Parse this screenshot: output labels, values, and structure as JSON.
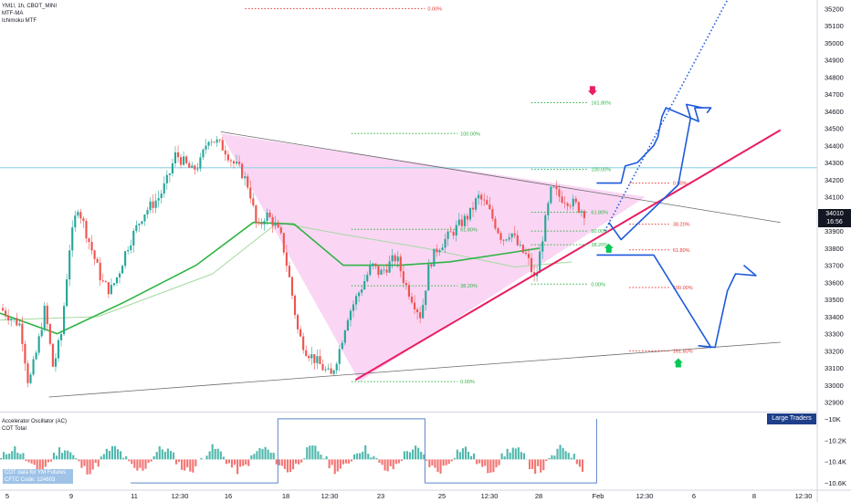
{
  "legend": {
    "symbol_line": "YM1!, 1h, CBOT_MINI",
    "indicator1": "MTF-MA",
    "indicator2": "Ichimoku MTF"
  },
  "osc_legend": {
    "line1": "Accelerator Oscillator (AC)",
    "line2": "COT Total"
  },
  "cot_box": {
    "line1": "COT data for YM Futures",
    "line2": "CFTC Code: 124603"
  },
  "large_traders_label": "Large Traders",
  "price_tag": {
    "price": "34010",
    "countdown": "16:56"
  },
  "chart_data": {
    "type": "candlestick",
    "symbol": "YM1!",
    "interval": "1h",
    "exchange": "CBOT_MINI",
    "ylim": [
      32850,
      35250
    ],
    "y_ticks": [
      35200,
      35100,
      35000,
      34900,
      34800,
      34700,
      34600,
      34500,
      34400,
      34300,
      34200,
      34100,
      33900,
      33800,
      33700,
      33600,
      33500,
      33400,
      33300,
      33200,
      33100,
      33000,
      32900
    ],
    "x_tick_labels": [
      "5",
      "9",
      "11",
      "12:30",
      "16",
      "18",
      "12:30",
      "23",
      "25",
      "12:30",
      "28",
      "Feb",
      "12:30",
      "6",
      "8",
      "12:30"
    ],
    "last_price": 34010,
    "colors": {
      "up": "#26a69a",
      "down": "#ef5350",
      "triangle_fill": "#f8c8f0",
      "ma_fast": "#2fb344",
      "ma_slow": "#a6d9a0",
      "trendline": "#e91e63",
      "projection": "#1e5adc",
      "horizontal_level": "#9ad7e6"
    },
    "price_path": [
      [
        0,
        33450
      ],
      [
        0.012,
        33400
      ],
      [
        0.025,
        33350
      ],
      [
        0.035,
        33000
      ],
      [
        0.045,
        33200
      ],
      [
        0.055,
        33450
      ],
      [
        0.065,
        33100
      ],
      [
        0.075,
        33300
      ],
      [
        0.085,
        33800
      ],
      [
        0.095,
        34050
      ],
      [
        0.105,
        33900
      ],
      [
        0.115,
        33750
      ],
      [
        0.125,
        33600
      ],
      [
        0.135,
        33550
      ],
      [
        0.145,
        33650
      ],
      [
        0.155,
        33800
      ],
      [
        0.165,
        33900
      ],
      [
        0.175,
        34000
      ],
      [
        0.185,
        34050
      ],
      [
        0.195,
        34100
      ],
      [
        0.205,
        34200
      ],
      [
        0.215,
        34350
      ],
      [
        0.225,
        34300
      ],
      [
        0.235,
        34250
      ],
      [
        0.245,
        34300
      ],
      [
        0.255,
        34450
      ],
      [
        0.265,
        34420
      ],
      [
        0.275,
        34380
      ],
      [
        0.285,
        34300
      ],
      [
        0.295,
        34250
      ],
      [
        0.305,
        34150
      ],
      [
        0.315,
        33900
      ],
      [
        0.325,
        34000
      ],
      [
        0.335,
        33950
      ],
      [
        0.345,
        33850
      ],
      [
        0.355,
        33600
      ],
      [
        0.365,
        33300
      ],
      [
        0.375,
        33200
      ],
      [
        0.385,
        33150
      ],
      [
        0.395,
        33100
      ],
      [
        0.405,
        33050
      ],
      [
        0.415,
        33200
      ],
      [
        0.425,
        33400
      ],
      [
        0.435,
        33500
      ],
      [
        0.445,
        33600
      ],
      [
        0.455,
        33700
      ],
      [
        0.465,
        33650
      ],
      [
        0.475,
        33700
      ],
      [
        0.485,
        33750
      ],
      [
        0.495,
        33600
      ],
      [
        0.505,
        33500
      ],
      [
        0.515,
        33400
      ],
      [
        0.525,
        33700
      ],
      [
        0.535,
        33800
      ],
      [
        0.545,
        33850
      ],
      [
        0.555,
        33900
      ],
      [
        0.565,
        33950
      ],
      [
        0.575,
        34000
      ],
      [
        0.585,
        34100
      ],
      [
        0.595,
        34050
      ],
      [
        0.605,
        33950
      ],
      [
        0.615,
        33850
      ],
      [
        0.625,
        33900
      ],
      [
        0.635,
        33800
      ],
      [
        0.645,
        33750
      ],
      [
        0.655,
        33600
      ],
      [
        0.665,
        33900
      ],
      [
        0.675,
        34150
      ],
      [
        0.685,
        34100
      ],
      [
        0.695,
        34080
      ],
      [
        0.705,
        34050
      ],
      [
        0.715,
        34010
      ]
    ],
    "moving_averages": {
      "fast": [
        [
          0,
          33420
        ],
        [
          0.07,
          33300
        ],
        [
          0.15,
          33480
        ],
        [
          0.24,
          33700
        ],
        [
          0.31,
          33950
        ],
        [
          0.36,
          33940
        ],
        [
          0.42,
          33700
        ],
        [
          0.49,
          33700
        ],
        [
          0.55,
          33720
        ],
        [
          0.62,
          33770
        ],
        [
          0.66,
          33800
        ]
      ],
      "slow": [
        [
          0,
          33380
        ],
        [
          0.12,
          33400
        ],
        [
          0.26,
          33650
        ],
        [
          0.34,
          33950
        ],
        [
          0.42,
          33880
        ],
        [
          0.52,
          33800
        ],
        [
          0.63,
          33690
        ],
        [
          0.7,
          33720
        ]
      ]
    },
    "triangle": [
      [
        0.27,
        34470
      ],
      [
        0.44,
        33020
      ],
      [
        0.79,
        34100
      ]
    ],
    "trendlines": {
      "upper_black": [
        [
          0.27,
          34480
        ],
        [
          0.955,
          33950
        ]
      ],
      "lower_black": [
        [
          0.06,
          32930
        ],
        [
          0.955,
          33250
        ]
      ],
      "pink_support": [
        [
          0.435,
          33030
        ],
        [
          0.955,
          34490
        ]
      ],
      "horizontal_cyan": 34270
    },
    "fib_sets": [
      {
        "x_from": 0.43,
        "x_to": 0.56,
        "color": "#2fb344",
        "levels": [
          {
            "label": "100.00%",
            "value": 34470
          },
          {
            "label": "61.80%",
            "value": 33910
          },
          {
            "label": "38.20%",
            "value": 33580
          },
          {
            "label": "0.00%",
            "value": 33020
          }
        ]
      },
      {
        "x_from": 0.65,
        "x_to": 0.72,
        "color": "#2fb344",
        "levels": [
          {
            "label": "161.80%",
            "value": 34650
          },
          {
            "label": "100.00%",
            "value": 34260
          },
          {
            "label": "61.80%",
            "value": 34010
          },
          {
            "label": "50.00%",
            "value": 33900
          },
          {
            "label": "38.20%",
            "value": 33820
          },
          {
            "label": "0.00%",
            "value": 33590
          }
        ]
      },
      {
        "x_from": 0.77,
        "x_to": 0.82,
        "color": "#e53935",
        "levels": [
          {
            "label": "0.00%",
            "value": 34180
          },
          {
            "label": "38.20%",
            "value": 33940
          },
          {
            "label": "61.80%",
            "value": 33790
          },
          {
            "label": "100.00%",
            "value": 33570
          },
          {
            "label": "161.80%",
            "value": 33200
          }
        ]
      },
      {
        "x_from": 0.3,
        "x_to": 0.52,
        "color": "#e53935",
        "levels": [
          {
            "label": "0.00%",
            "value": 35200
          }
        ]
      }
    ],
    "projections": [
      {
        "style": "solid",
        "points": [
          [
            0.73,
            34180
          ],
          [
            0.76,
            34180
          ],
          [
            0.765,
            34280
          ],
          [
            0.78,
            34300
          ],
          [
            0.8,
            34400
          ],
          [
            0.805,
            34450
          ],
          [
            0.81,
            34570
          ],
          [
            0.815,
            34620
          ],
          [
            0.855,
            34540
          ],
          [
            0.85,
            34620
          ],
          [
            0.87,
            34620
          ],
          [
            0.865,
            34590
          ]
        ]
      },
      {
        "style": "solid",
        "points": [
          [
            0.745,
            33950
          ],
          [
            0.76,
            33850
          ],
          [
            0.83,
            34170
          ],
          [
            0.845,
            34560
          ],
          [
            0.84,
            34640
          ],
          [
            0.86,
            34620
          ]
        ]
      },
      {
        "style": "dotted",
        "points": [
          [
            0.74,
            33900
          ],
          [
            0.89,
            35250
          ]
        ]
      },
      {
        "style": "solid",
        "points": [
          [
            0.73,
            33760
          ],
          [
            0.8,
            33760
          ],
          [
            0.87,
            33220
          ],
          [
            0.855,
            33230
          ],
          [
            0.875,
            33220
          ],
          [
            0.89,
            33550
          ],
          [
            0.9,
            33650
          ],
          [
            0.925,
            33640
          ],
          [
            0.91,
            33700
          ]
        ]
      }
    ],
    "markers": [
      {
        "type": "arrow-down",
        "color": "#e91e63",
        "x": 0.725,
        "y": 34720
      },
      {
        "type": "arrow-up",
        "color": "#00c853",
        "x": 0.745,
        "y": 33800
      },
      {
        "type": "arrow-up",
        "color": "#00c853",
        "x": 0.83,
        "y": 33130
      }
    ],
    "oscillator": {
      "name": "Accelerator Oscillator (AC)",
      "y_ticks": [
        -10,
        -10.2,
        -10.4,
        -10.6
      ],
      "y_tick_labels": [
        "−10K",
        "−10.2K",
        "−10.4K",
        "−10.6K"
      ],
      "cot_step_line": [
        [
          0.16,
          -10.6
        ],
        [
          0.34,
          -10.6
        ],
        [
          0.34,
          -10.0
        ],
        [
          0.52,
          -10.0
        ],
        [
          0.52,
          -10.6
        ],
        [
          0.73,
          -10.6
        ],
        [
          0.73,
          -10.0
        ]
      ]
    }
  }
}
